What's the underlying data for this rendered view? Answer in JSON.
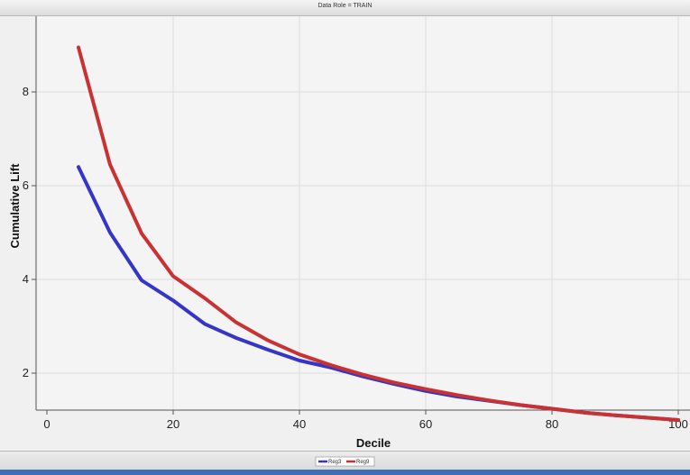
{
  "window": {
    "title": "Data Role = TRAIN"
  },
  "chart_data": {
    "type": "line",
    "title": "Data Role = TRAIN",
    "xlabel": "Decile",
    "ylabel": "Cumulative Lift",
    "xlim": [
      0,
      100
    ],
    "ylim": [
      1,
      9.2
    ],
    "xticks": [
      0,
      20,
      40,
      60,
      80,
      100
    ],
    "yticks": [
      2,
      4,
      6,
      8
    ],
    "grid": true,
    "legend_placement": "bottom",
    "series": [
      {
        "name": "Reg3",
        "color": "#3535c8",
        "x": [
          5,
          10,
          15,
          20,
          25,
          30,
          35,
          40,
          45,
          50,
          55,
          60,
          65,
          70,
          75,
          80,
          85,
          90,
          95,
          100
        ],
        "y": [
          6.4,
          5.0,
          3.98,
          3.55,
          3.05,
          2.75,
          2.5,
          2.27,
          2.12,
          1.93,
          1.77,
          1.62,
          1.5,
          1.41,
          1.32,
          1.24,
          1.16,
          1.1,
          1.05,
          1.0
        ]
      },
      {
        "name": "Reg9",
        "color": "#c83232",
        "x": [
          5,
          10,
          15,
          20,
          25,
          30,
          35,
          40,
          45,
          50,
          55,
          60,
          65,
          70,
          75,
          80,
          85,
          90,
          95,
          100
        ],
        "y": [
          8.95,
          6.45,
          4.98,
          4.07,
          3.6,
          3.08,
          2.7,
          2.4,
          2.17,
          1.97,
          1.8,
          1.66,
          1.53,
          1.42,
          1.32,
          1.24,
          1.16,
          1.1,
          1.05,
          1.0
        ]
      }
    ]
  }
}
